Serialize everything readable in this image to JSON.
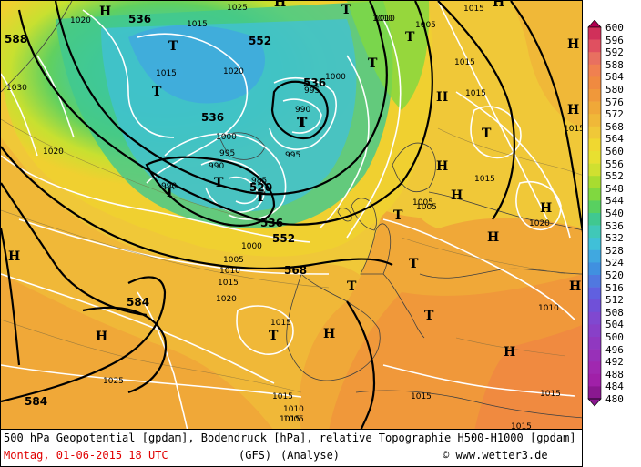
{
  "map": {
    "geopotential_labels": [
      {
        "text": "536"
      },
      {
        "text": "588"
      },
      {
        "text": "552"
      },
      {
        "text": "536"
      },
      {
        "text": "536"
      },
      {
        "text": "520"
      },
      {
        "text": "536"
      },
      {
        "text": "552"
      },
      {
        "text": "568"
      },
      {
        "text": "584"
      },
      {
        "text": "584"
      }
    ],
    "pressure_labels": [
      {
        "text": "1020"
      },
      {
        "text": "1015"
      },
      {
        "text": "1025"
      },
      {
        "text": "1010"
      },
      {
        "text": "1005"
      },
      {
        "text": "1015"
      },
      {
        "text": "1015"
      },
      {
        "text": "1030"
      },
      {
        "text": "1015"
      },
      {
        "text": "1020"
      },
      {
        "text": "1000"
      },
      {
        "text": "995"
      },
      {
        "text": "990"
      },
      {
        "text": "1000"
      },
      {
        "text": "995"
      },
      {
        "text": "990"
      },
      {
        "text": "995"
      },
      {
        "text": "985"
      },
      {
        "text": "990"
      },
      {
        "text": "1020"
      },
      {
        "text": "1015"
      },
      {
        "text": "1015"
      },
      {
        "text": "1000"
      },
      {
        "text": "1005"
      },
      {
        "text": "1010"
      },
      {
        "text": "1015"
      },
      {
        "text": "1020"
      },
      {
        "text": "1015"
      },
      {
        "text": "1025"
      },
      {
        "text": "1015"
      },
      {
        "text": "1010"
      },
      {
        "text": "1005"
      },
      {
        "text": "1015"
      },
      {
        "text": "1015"
      },
      {
        "text": "1020"
      },
      {
        "text": "1010"
      },
      {
        "text": "1015"
      },
      {
        "text": "1015"
      },
      {
        "text": "1005"
      },
      {
        "text": "1015"
      },
      {
        "text": "1005"
      },
      {
        "text": "1010"
      }
    ],
    "pressure_centers": [
      {
        "type": "H"
      },
      {
        "type": "T"
      },
      {
        "type": "T"
      },
      {
        "type": "T"
      },
      {
        "type": "T"
      },
      {
        "type": "T"
      },
      {
        "type": "T"
      },
      {
        "type": "T"
      },
      {
        "type": "T"
      },
      {
        "type": "T"
      },
      {
        "type": "H"
      },
      {
        "type": "H"
      },
      {
        "type": "H"
      },
      {
        "type": "T"
      },
      {
        "type": "H"
      },
      {
        "type": "H"
      },
      {
        "type": "T"
      },
      {
        "type": "H"
      },
      {
        "type": "T"
      },
      {
        "type": "T"
      },
      {
        "type": "T"
      },
      {
        "type": "H"
      },
      {
        "type": "H"
      },
      {
        "type": "H"
      },
      {
        "type": "H"
      },
      {
        "type": "H"
      },
      {
        "type": "T"
      },
      {
        "type": "H"
      },
      {
        "type": "H"
      },
      {
        "type": "H"
      },
      {
        "type": "T"
      }
    ]
  },
  "legend": {
    "values": [
      "600",
      "596",
      "592",
      "588",
      "584",
      "580",
      "576",
      "572",
      "568",
      "564",
      "560",
      "556",
      "552",
      "548",
      "544",
      "540",
      "536",
      "532",
      "528",
      "524",
      "520",
      "516",
      "512",
      "508",
      "504",
      "500",
      "496",
      "492",
      "488",
      "484",
      "480"
    ],
    "colors": [
      "#b00050",
      "#d0305a",
      "#e05060",
      "#e87060",
      "#f08050",
      "#f08a40",
      "#f0983a",
      "#f0a838",
      "#f0b838",
      "#f0c838",
      "#f0d830",
      "#e8e030",
      "#d0e030",
      "#a8dc30",
      "#80d840",
      "#58d060",
      "#40c890",
      "#40c8b8",
      "#40c0d8",
      "#40a8e0",
      "#4090e0",
      "#5078e0",
      "#6060e0",
      "#7050d8",
      "#8048d0",
      "#8840c8",
      "#9038c0",
      "#9830b8",
      "#a028b0",
      "#a020a8",
      "#8a1890"
    ]
  },
  "footer": {
    "line1": "500 hPa Geopotential [gpdam], Bodendruck [hPa], relative Topographie H500-H1000 [gpdam]",
    "date": "Montag, 01-06-2015  18 UTC",
    "model": "(GFS)",
    "analysis": "(Analyse)",
    "copyright": "© www.wetter3.de"
  }
}
